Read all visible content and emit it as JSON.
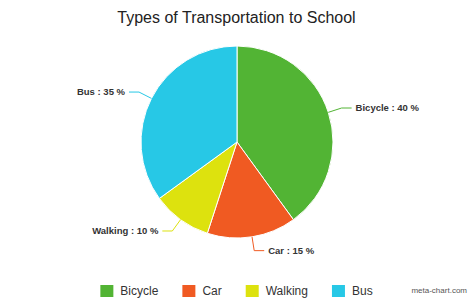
{
  "chart_data": {
    "type": "pie",
    "title": "Types of Transportation to School",
    "categories": [
      "Bicycle",
      "Car",
      "Walking",
      "Bus"
    ],
    "values": [
      40,
      15,
      10,
      35
    ],
    "value_labels": [
      "Bicycle : 40 %",
      "Car : 15 %",
      "Walking : 10 %",
      "Bus : 35 %"
    ],
    "colors": [
      "#52b434",
      "#f05a22",
      "#dde20e",
      "#27c8e6"
    ],
    "data_labels": true,
    "legend": "bottom",
    "annotations": [
      "meta-chart.com"
    ]
  }
}
